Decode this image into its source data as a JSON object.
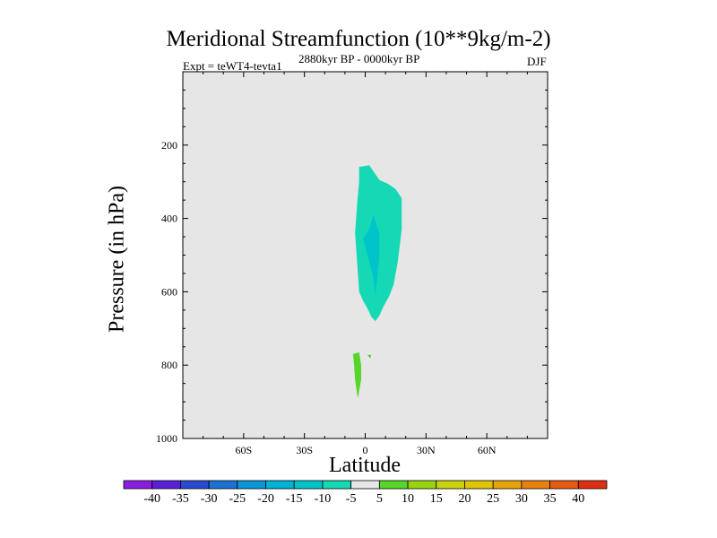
{
  "title": "Meridional Streamfunction (10**9kg/m-2)",
  "left_subtitle": "Expt = teWT4-tevta1",
  "center_subtitle": "2880kyr BP - 0000kyr BP",
  "right_subtitle": "DJF",
  "chart_data": {
    "type": "contour",
    "title": "Meridional Streamfunction (10**9kg/m-2)",
    "xlabel": "Latitude",
    "ylabel": "Pressure (in hPa)",
    "xlim": [
      -90,
      90
    ],
    "ylim": [
      0,
      1000
    ],
    "x_ticks": [
      {
        "value": -60,
        "label": "60S"
      },
      {
        "value": -30,
        "label": "30S"
      },
      {
        "value": 0,
        "label": "0"
      },
      {
        "value": 30,
        "label": "30N"
      },
      {
        "value": 60,
        "label": "60N"
      }
    ],
    "y_ticks": [
      {
        "value": 200,
        "label": "200"
      },
      {
        "value": 400,
        "label": "400"
      },
      {
        "value": 600,
        "label": "600"
      },
      {
        "value": 800,
        "label": "800"
      },
      {
        "value": 1000,
        "label": "1000"
      }
    ],
    "background_color": "#e6e6e6",
    "regions": [
      {
        "name": "negative-cell-fill",
        "level": "-10 to -5",
        "color": "#14d9b4",
        "points": [
          [
            -3,
            260
          ],
          [
            2,
            255
          ],
          [
            7,
            295
          ],
          [
            11,
            305
          ],
          [
            15,
            320
          ],
          [
            18,
            345
          ],
          [
            18,
            430
          ],
          [
            16,
            520
          ],
          [
            14,
            580
          ],
          [
            12,
            610
          ],
          [
            9,
            640
          ],
          [
            7,
            665
          ],
          [
            5,
            680
          ],
          [
            3,
            668
          ],
          [
            1,
            645
          ],
          [
            -1,
            625
          ],
          [
            -3,
            600
          ],
          [
            -4,
            520
          ],
          [
            -5,
            440
          ],
          [
            -4,
            360
          ],
          [
            -3,
            300
          ]
        ]
      },
      {
        "name": "negative-cell-core",
        "level": "-15 to -10",
        "color": "#00c4c9",
        "points": [
          [
            4,
            390
          ],
          [
            7,
            440
          ],
          [
            7,
            500
          ],
          [
            6,
            560
          ],
          [
            5,
            610
          ],
          [
            4,
            560
          ],
          [
            1,
            500
          ],
          [
            -1,
            455
          ],
          [
            2,
            430
          ]
        ]
      },
      {
        "name": "positive-cell",
        "level": "5 to 10",
        "color": "#58d52a",
        "points": [
          [
            -6,
            770
          ],
          [
            -3,
            765
          ],
          [
            -2,
            800
          ],
          [
            -2,
            840
          ],
          [
            -3,
            870
          ],
          [
            -3.5,
            890
          ],
          [
            -4,
            880
          ],
          [
            -5,
            840
          ],
          [
            -5.5,
            800
          ]
        ]
      },
      {
        "name": "positive-cell-fleck",
        "level": "5 to 10",
        "color": "#58d52a",
        "points": [
          [
            1,
            772
          ],
          [
            3,
            772
          ],
          [
            2.5,
            782
          ]
        ]
      }
    ],
    "colorbar": {
      "levels": [
        -40,
        -35,
        -30,
        -25,
        -20,
        -15,
        -10,
        -5,
        5,
        10,
        15,
        20,
        25,
        30,
        35,
        40
      ],
      "colors": [
        "#8a1ee0",
        "#5a20d8",
        "#2a4ad2",
        "#1a72d4",
        "#0a96d8",
        "#00b2d6",
        "#00c4c9",
        "#14d9b4",
        "#e6e6e6",
        "#58d52a",
        "#9ad310",
        "#c8d20e",
        "#e0c40a",
        "#e8a30a",
        "#e88010",
        "#e65a12",
        "#e02e12"
      ]
    }
  }
}
